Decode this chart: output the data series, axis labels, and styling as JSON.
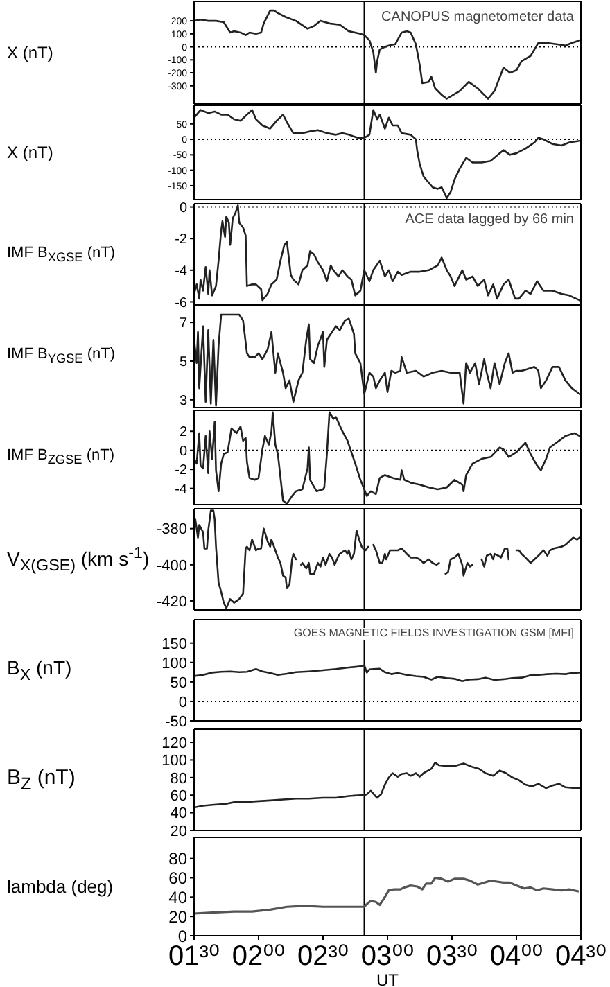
{
  "chart_data": [
    {
      "type": "line",
      "ylabel": "X (nT)",
      "xlim": [
        1.5,
        4.5
      ],
      "xticks": [
        {
          "value": 1.5,
          "label": null
        },
        {
          "value": 2,
          "label": null
        },
        {
          "value": 2.5,
          "label": null
        },
        {
          "value": 3,
          "label": null
        },
        {
          "value": 3.5,
          "label": null
        },
        {
          "value": 4,
          "label": null
        },
        {
          "value": 4.5,
          "label": null
        }
      ],
      "ylim": [
        -440,
        350
      ],
      "yticks": [
        -300,
        -200,
        -100,
        0,
        100,
        200
      ],
      "tick_labels": "y",
      "annotations": [
        "CANOPUS magnetometer data"
      ],
      "ref_lines": [
        {
          "axis": "x",
          "value": 2.82,
          "color": "#000000"
        },
        {
          "axis": "y",
          "value": 0,
          "color": "#000000",
          "line_style": "dotted"
        }
      ],
      "color": "#222222",
      "x": [
        1.5,
        1.55,
        1.61,
        1.67,
        1.73,
        1.78,
        1.81,
        1.86,
        1.9,
        1.93,
        1.98,
        2.02,
        2.04,
        2.09,
        2.12,
        2.15,
        2.21,
        2.29,
        2.38,
        2.43,
        2.48,
        2.55,
        2.63,
        2.7,
        2.79,
        2.82,
        2.86,
        2.89,
        2.91,
        2.92,
        2.94,
        2.98,
        3.01,
        3.06,
        3.11,
        3.15,
        3.18,
        3.22,
        3.25,
        3.27,
        3.32,
        3.34,
        3.37,
        3.42,
        3.46,
        3.51,
        3.56,
        3.63,
        3.7,
        3.75,
        3.78,
        3.83,
        3.9,
        3.95,
        4.0,
        4.04,
        4.11,
        4.17,
        4.24,
        4.31,
        4.38,
        4.43,
        4.49
      ],
      "values": [
        200,
        210,
        200,
        200,
        190,
        110,
        120,
        110,
        90,
        110,
        100,
        110,
        180,
        280,
        280,
        260,
        230,
        200,
        140,
        160,
        200,
        180,
        170,
        120,
        100,
        90,
        50,
        -40,
        -200,
        -110,
        -20,
        0,
        10,
        20,
        110,
        120,
        110,
        20,
        -140,
        -280,
        -270,
        -230,
        -320,
        -370,
        -400,
        -370,
        -340,
        -270,
        -320,
        -370,
        -400,
        -340,
        -160,
        -200,
        -180,
        -110,
        -70,
        30,
        30,
        20,
        10,
        30,
        50
      ]
    },
    {
      "type": "line",
      "ylabel": "X (nT)",
      "xlim": [
        1.5,
        4.5
      ],
      "xticks": [
        {
          "value": 1.5,
          "label": null
        },
        {
          "value": 2,
          "label": null
        },
        {
          "value": 2.5,
          "label": null
        },
        {
          "value": 3,
          "label": null
        },
        {
          "value": 3.5,
          "label": null
        },
        {
          "value": 4,
          "label": null
        },
        {
          "value": 4.5,
          "label": null
        }
      ],
      "ylim": [
        -195,
        110
      ],
      "yticks": [
        -150,
        -100,
        -50,
        0,
        50
      ],
      "tick_labels": "y",
      "ref_lines": [
        {
          "axis": "x",
          "value": 2.82,
          "color": "#000000"
        },
        {
          "axis": "y",
          "value": 0,
          "color": "#000000",
          "line_style": "dotted"
        }
      ],
      "color": "#222222",
      "x": [
        1.5,
        1.55,
        1.61,
        1.66,
        1.71,
        1.76,
        1.81,
        1.86,
        1.91,
        1.95,
        1.98,
        2.03,
        2.09,
        2.14,
        2.19,
        2.22,
        2.27,
        2.34,
        2.39,
        2.46,
        2.53,
        2.6,
        2.65,
        2.7,
        2.77,
        2.82,
        2.86,
        2.89,
        2.92,
        2.94,
        2.98,
        3.01,
        3.04,
        3.08,
        3.11,
        3.18,
        3.22,
        3.23,
        3.25,
        3.28,
        3.32,
        3.35,
        3.39,
        3.42,
        3.46,
        3.49,
        3.52,
        3.56,
        3.61,
        3.66,
        3.73,
        3.8,
        3.87,
        3.9,
        3.95,
        4.0,
        4.07,
        4.14,
        4.17,
        4.21,
        4.28,
        4.35,
        4.41,
        4.49
      ],
      "values": [
        70,
        95,
        85,
        90,
        80,
        80,
        65,
        60,
        80,
        95,
        65,
        45,
        35,
        60,
        80,
        55,
        20,
        20,
        25,
        30,
        20,
        15,
        20,
        15,
        5,
        5,
        15,
        95,
        65,
        80,
        35,
        70,
        45,
        45,
        20,
        15,
        0,
        -35,
        -80,
        -120,
        -140,
        -155,
        -160,
        -155,
        -190,
        -170,
        -130,
        -95,
        -60,
        -75,
        -75,
        -70,
        -45,
        -35,
        -50,
        -45,
        -30,
        -10,
        5,
        0,
        -15,
        -20,
        -10,
        -5
      ]
    },
    {
      "type": "line",
      "ylabel": "IMF B$_{XGSE}$ (nT)",
      "xlim": [
        1.5,
        4.5
      ],
      "xticks": [
        {
          "value": 1.5,
          "label": null
        },
        {
          "value": 2,
          "label": null
        },
        {
          "value": 2.5,
          "label": null
        },
        {
          "value": 3,
          "label": null
        },
        {
          "value": 3.5,
          "label": null
        },
        {
          "value": 4,
          "label": null
        },
        {
          "value": 4.5,
          "label": null
        }
      ],
      "ylim": [
        -6.2,
        0.2
      ],
      "yticks": [
        -6,
        -4,
        -2,
        0
      ],
      "tick_labels": "y",
      "annotations": [
        "ACE data lagged by 66 min"
      ],
      "ref_lines": [
        {
          "axis": "x",
          "value": 2.82,
          "color": "#000000"
        },
        {
          "axis": "y",
          "value": 0,
          "color": "#000000",
          "line_style": "dotted"
        }
      ],
      "color": "#222222",
      "x": [
        1.5,
        1.52,
        1.54,
        1.55,
        1.57,
        1.59,
        1.61,
        1.62,
        1.64,
        1.66,
        1.67,
        1.69,
        1.71,
        1.72,
        1.74,
        1.75,
        1.77,
        1.78,
        1.8,
        1.82,
        1.84,
        1.85,
        1.88,
        1.9,
        1.91,
        1.95,
        1.98,
        2.02,
        2.03,
        2.07,
        2.1,
        2.14,
        2.17,
        2.2,
        2.22,
        2.25,
        2.27,
        2.31,
        2.34,
        2.38,
        2.4,
        2.43,
        2.46,
        2.5,
        2.53,
        2.56,
        2.58,
        2.62,
        2.65,
        2.69,
        2.72,
        2.75,
        2.79,
        2.82,
        2.86,
        2.89,
        2.94,
        2.98,
        3.01,
        3.04,
        3.08,
        3.11,
        3.18,
        3.25,
        3.32,
        3.39,
        3.42,
        3.46,
        3.49,
        3.52,
        3.58,
        3.61,
        3.66,
        3.7,
        3.75,
        3.78,
        3.82,
        3.85,
        3.9,
        3.94,
        3.99,
        4.02,
        4.07,
        4.11,
        4.16,
        4.21,
        4.28,
        4.35,
        4.41,
        4.49
      ],
      "values": [
        -5.5,
        -4.9,
        -5.8,
        -4.6,
        -5.3,
        -3.8,
        -5.5,
        -4.0,
        -5.6,
        -5.2,
        -5.0,
        -3.4,
        -1.5,
        -0.9,
        -1.9,
        -0.6,
        -1.0,
        -2.4,
        -0.7,
        -0.4,
        0.1,
        -1.0,
        -1.3,
        -1.8,
        -5.0,
        -4.9,
        -4.9,
        -5.2,
        -5.9,
        -5.5,
        -4.9,
        -4.6,
        -3.4,
        -2.4,
        -2.2,
        -4.3,
        -4.6,
        -4.9,
        -4.0,
        -3.7,
        -2.8,
        -3.0,
        -3.5,
        -4.0,
        -4.7,
        -3.7,
        -4.0,
        -4.4,
        -4.0,
        -4.4,
        -4.6,
        -5.6,
        -5.3,
        -4.0,
        -4.7,
        -4.0,
        -3.4,
        -4.4,
        -4.0,
        -4.7,
        -4.1,
        -4.3,
        -4.1,
        -4.1,
        -4.0,
        -3.7,
        -3.2,
        -4.0,
        -4.4,
        -5.0,
        -4.0,
        -4.6,
        -4.4,
        -5.0,
        -4.6,
        -5.6,
        -4.9,
        -5.8,
        -4.9,
        -4.6,
        -5.8,
        -5.8,
        -5.3,
        -5.5,
        -4.7,
        -5.3,
        -5.3,
        -5.5,
        -5.6,
        -5.9
      ]
    },
    {
      "type": "line",
      "ylabel": "IMF B$_{YGSE}$ (nT)",
      "xlim": [
        1.5,
        4.5
      ],
      "xticks": [
        {
          "value": 1.5,
          "label": null
        },
        {
          "value": 2,
          "label": null
        },
        {
          "value": 2.5,
          "label": null
        },
        {
          "value": 3,
          "label": null
        },
        {
          "value": 3.5,
          "label": null
        },
        {
          "value": 4,
          "label": null
        },
        {
          "value": 4.5,
          "label": null
        }
      ],
      "ylim": [
        2.6,
        7.9
      ],
      "yticks": [
        3,
        5,
        7
      ],
      "tick_labels": "y",
      "ref_lines": [
        {
          "axis": "x",
          "value": 2.82,
          "color": "#000000"
        }
      ],
      "color": "#222222",
      "x": [
        1.5,
        1.52,
        1.53,
        1.54,
        1.57,
        1.59,
        1.61,
        1.63,
        1.65,
        1.67,
        1.69,
        1.71,
        1.74,
        1.79,
        1.85,
        1.88,
        1.91,
        1.93,
        1.97,
        2.0,
        2.03,
        2.07,
        2.1,
        2.13,
        2.15,
        2.19,
        2.21,
        2.24,
        2.27,
        2.31,
        2.34,
        2.37,
        2.39,
        2.4,
        2.43,
        2.46,
        2.5,
        2.51,
        2.53,
        2.57,
        2.6,
        2.63,
        2.67,
        2.7,
        2.74,
        2.75,
        2.79,
        2.82,
        2.86,
        2.89,
        2.91,
        2.94,
        2.98,
        3.0,
        3.03,
        3.06,
        3.1,
        3.11,
        3.15,
        3.22,
        3.28,
        3.35,
        3.42,
        3.49,
        3.56,
        3.59,
        3.61,
        3.64,
        3.68,
        3.71,
        3.75,
        3.77,
        3.8,
        3.83,
        3.87,
        3.91,
        3.94,
        3.97,
        4.0,
        4.04,
        4.09,
        4.14,
        4.17,
        4.19,
        4.23,
        4.28,
        4.33,
        4.38,
        4.43,
        4.49
      ],
      "values": [
        6.1,
        4.9,
        6.5,
        3.6,
        6.8,
        2.9,
        6.6,
        2.8,
        6.1,
        2.7,
        5.8,
        7.4,
        7.4,
        7.4,
        7.4,
        7.1,
        5.4,
        5.2,
        5.2,
        5.4,
        5.1,
        5.6,
        6.5,
        4.4,
        5.4,
        4.4,
        3.6,
        4.0,
        2.9,
        4.0,
        4.4,
        6.1,
        6.9,
        5.1,
        4.9,
        5.8,
        6.5,
        4.7,
        6.1,
        6.5,
        6.8,
        6.6,
        7.1,
        7.2,
        6.4,
        5.4,
        4.9,
        3.3,
        4.4,
        4.2,
        3.6,
        4.0,
        4.4,
        3.4,
        4.5,
        4.4,
        4.5,
        5.2,
        4.4,
        4.5,
        4.2,
        4.4,
        4.5,
        4.4,
        4.4,
        2.8,
        4.9,
        4.4,
        4.9,
        3.8,
        5.1,
        4.4,
        3.6,
        4.9,
        3.8,
        4.9,
        5.4,
        4.4,
        4.5,
        4.5,
        4.6,
        4.7,
        4.5,
        3.6,
        4.0,
        4.7,
        4.7,
        4.0,
        3.6,
        3.3
      ]
    },
    {
      "type": "line",
      "ylabel": "IMF B$_{ZGSE}$ (nT)",
      "xlim": [
        1.5,
        4.5
      ],
      "xticks": [
        {
          "value": 1.5,
          "label": null
        },
        {
          "value": 2,
          "label": null
        },
        {
          "value": 2.5,
          "label": null
        },
        {
          "value": 3,
          "label": null
        },
        {
          "value": 3.5,
          "label": null
        },
        {
          "value": 4,
          "label": null
        },
        {
          "value": 4.5,
          "label": null
        }
      ],
      "ylim": [
        -5.7,
        4.2
      ],
      "yticks": [
        -4,
        -2,
        0,
        2
      ],
      "tick_labels": "y",
      "ref_lines": [
        {
          "axis": "x",
          "value": 2.82,
          "color": "#000000"
        },
        {
          "axis": "y",
          "value": 0,
          "color": "#000000",
          "line_style": "dotted"
        }
      ],
      "color": "#222222",
      "x": [
        1.5,
        1.52,
        1.54,
        1.55,
        1.57,
        1.59,
        1.61,
        1.62,
        1.64,
        1.66,
        1.67,
        1.69,
        1.71,
        1.73,
        1.76,
        1.79,
        1.83,
        1.86,
        1.88,
        1.9,
        1.91,
        1.93,
        1.97,
        2.0,
        2.03,
        2.05,
        2.08,
        2.1,
        2.11,
        2.13,
        2.15,
        2.19,
        2.22,
        2.26,
        2.29,
        2.34,
        2.38,
        2.39,
        2.4,
        2.45,
        2.5,
        2.51,
        2.53,
        2.55,
        2.58,
        2.6,
        2.65,
        2.69,
        2.72,
        2.75,
        2.79,
        2.82,
        2.84,
        2.87,
        2.91,
        2.94,
        2.98,
        3.04,
        3.1,
        3.11,
        3.13,
        3.18,
        3.25,
        3.32,
        3.39,
        3.46,
        3.52,
        3.58,
        3.59,
        3.61,
        3.66,
        3.73,
        3.8,
        3.87,
        3.9,
        3.94,
        4.0,
        4.07,
        4.11,
        4.16,
        4.19,
        4.23,
        4.26,
        4.31,
        4.38,
        4.45,
        4.49
      ],
      "values": [
        -0.9,
        -1.4,
        1.8,
        -1.6,
        -1.9,
        1.5,
        -2.4,
        2.0,
        -0.9,
        3.0,
        -2.1,
        -4.3,
        -1.4,
        -0.4,
        -0.2,
        2.3,
        1.8,
        2.5,
        1.0,
        1.3,
        -1.2,
        -2.9,
        -3.1,
        -2.9,
        0.1,
        1.5,
        0.6,
        2.0,
        4.0,
        0.6,
        -0.4,
        -5.3,
        -5.6,
        -4.8,
        -4.3,
        -4.1,
        -1.9,
        0.3,
        -3.1,
        -4.3,
        -4.1,
        -3.9,
        -0.4,
        4.0,
        3.3,
        3.5,
        2.0,
        1.0,
        -0.2,
        -1.4,
        -3.1,
        -4.1,
        -4.8,
        -4.3,
        -4.6,
        -2.9,
        -2.6,
        -2.9,
        -3.1,
        -2.1,
        -3.1,
        -3.4,
        -3.6,
        -3.9,
        -4.1,
        -3.9,
        -3.1,
        -3.6,
        -4.3,
        -2.6,
        -1.4,
        -0.9,
        -0.7,
        0.3,
        0.1,
        -0.7,
        -0.2,
        0.8,
        -0.4,
        -1.6,
        -2.1,
        -0.9,
        0.3,
        0.8,
        1.5,
        1.8,
        1.5
      ]
    },
    {
      "type": "line",
      "ylabel": "V$_{X(GSE)}$ (km s$^{-1}$)",
      "xlim": [
        1.5,
        4.5
      ],
      "xticks": [
        {
          "value": 1.5,
          "label": null
        },
        {
          "value": 2,
          "label": null
        },
        {
          "value": 2.5,
          "label": null
        },
        {
          "value": 3,
          "label": null
        },
        {
          "value": 3.5,
          "label": null
        },
        {
          "value": 4,
          "label": null
        },
        {
          "value": 4.5,
          "label": null
        }
      ],
      "ylim": [
        -425,
        -369
      ],
      "yticks": [
        -420,
        -400,
        -380
      ],
      "tick_labels": "y",
      "ref_lines": [
        {
          "axis": "x",
          "value": 2.82,
          "color": "#000000"
        }
      ],
      "color": "#222222",
      "x": [
        1.5,
        1.51,
        1.53,
        1.54,
        1.57,
        1.58,
        1.6,
        1.61,
        1.63,
        1.65,
        1.66,
        1.67,
        1.69,
        1.71,
        1.73,
        1.75,
        1.78,
        1.81,
        1.85,
        1.88,
        1.9,
        1.91,
        1.93,
        1.95,
        1.98,
        2.0,
        2.02,
        2.04,
        2.07,
        2.09,
        2.1,
        2.13,
        2.15,
        2.17,
        2.19,
        2.21,
        2.22,
        2.24,
        2.26,
        2.27,
        2.29,
        2.31,
        2.33,
        2.34,
        2.37,
        2.39,
        2.4,
        2.43,
        2.46,
        2.48,
        2.5,
        2.52,
        2.55,
        2.57,
        2.59,
        2.62,
        2.63,
        2.67,
        2.69,
        2.7,
        2.72,
        2.74,
        2.76,
        2.78,
        2.8,
        2.81,
        2.83,
        2.85,
        2.87,
        2.89,
        2.91,
        2.94,
        2.96,
        2.98,
        2.99,
        3.02,
        3.04,
        3.08,
        3.11,
        3.15,
        3.18,
        3.22,
        3.25,
        3.28,
        3.32,
        3.35,
        3.38,
        3.4,
        3.42,
        3.45,
        3.47,
        3.49,
        3.52,
        3.55,
        3.58,
        3.59,
        3.62,
        3.64,
        3.66,
        3.7,
        3.73,
        3.75,
        3.77,
        3.8,
        3.82,
        3.83,
        3.86,
        3.88,
        3.91,
        3.93,
        3.94,
        3.97,
        4.0,
        4.02,
        4.04,
        4.07,
        4.11,
        4.14,
        4.17,
        4.21,
        4.24,
        4.26,
        4.29,
        4.35,
        4.38,
        4.41,
        4.44,
        4.47,
        4.49
      ],
      "values": [
        -382,
        -375,
        -385,
        -378,
        -382,
        -391,
        -391,
        -381,
        -370,
        -370,
        -375,
        -390,
        -410,
        -415,
        -421,
        -424,
        -419,
        -421,
        -419,
        -416,
        -391,
        -390,
        -392,
        -386,
        -392,
        -391,
        -391,
        -380,
        -387,
        -390,
        -386,
        -392,
        -396,
        -399,
        -406,
        -407,
        -413,
        -411,
        -397,
        -394,
        -397,
        null,
        -400,
        -399,
        -402,
        -399,
        -405,
        -405,
        -399,
        -401,
        -396,
        -400,
        -394,
        -396,
        -400,
        -395,
        -394,
        -392,
        -394,
        -392,
        -397,
        -394,
        -381,
        -386,
        -390,
        -391,
        -392,
        -390,
        null,
        -389,
        -392,
        -399,
        -399,
        -394,
        -397,
        -392,
        -392,
        -392,
        -391,
        -394,
        -396,
        -396,
        -397,
        -399,
        -397,
        -399,
        -400,
        -399,
        null,
        -405,
        -404,
        -397,
        -396,
        -394,
        -400,
        -406,
        -399,
        -401,
        -400,
        null,
        -397,
        -401,
        -395,
        -394,
        -397,
        -394,
        -395,
        -396,
        -391,
        -391,
        -397,
        null,
        -392,
        -392,
        -394,
        -396,
        -399,
        -397,
        -395,
        -392,
        -395,
        -392,
        -391,
        -390,
        -389,
        -387,
        -385,
        -386,
        -385
      ]
    },
    {
      "type": "line",
      "ylabel": "B$_{X}$ (nT)",
      "xlim": [
        1.5,
        4.5
      ],
      "xticks": [
        {
          "value": 1.5,
          "label": null
        },
        {
          "value": 2,
          "label": null
        },
        {
          "value": 2.5,
          "label": null
        },
        {
          "value": 3,
          "label": null
        },
        {
          "value": 3.5,
          "label": null
        },
        {
          "value": 4,
          "label": null
        },
        {
          "value": 4.5,
          "label": null
        }
      ],
      "ylim": [
        -50,
        210
      ],
      "yticks": [
        -50,
        0,
        50,
        100,
        150
      ],
      "tick_labels": "y",
      "annotations": [
        "GOES MAGNETIC FIELDS INVESTIGATION GSM [MFI]"
      ],
      "ref_lines": [
        {
          "axis": "x",
          "value": 2.82,
          "color": "#000000"
        },
        {
          "axis": "y",
          "value": 0,
          "color": "#000000",
          "line_style": "dotted"
        }
      ],
      "color": "#222222",
      "x": [
        1.5,
        1.57,
        1.64,
        1.71,
        1.78,
        1.85,
        1.91,
        1.98,
        2.03,
        2.09,
        2.15,
        2.22,
        2.29,
        2.39,
        2.5,
        2.6,
        2.7,
        2.79,
        2.82,
        2.84,
        2.86,
        2.89,
        2.94,
        2.98,
        3.03,
        3.08,
        3.15,
        3.22,
        3.28,
        3.34,
        3.39,
        3.46,
        3.52,
        3.58,
        3.63,
        3.7,
        3.76,
        3.83,
        3.9,
        3.97,
        4.04,
        4.11,
        4.17,
        4.24,
        4.31,
        4.38,
        4.43,
        4.49
      ],
      "values": [
        65,
        68,
        74,
        76,
        77,
        75,
        76,
        83,
        77,
        73,
        68,
        71,
        75,
        77,
        80,
        83,
        87,
        90,
        93,
        74,
        82,
        83,
        84,
        75,
        70,
        73,
        68,
        65,
        63,
        56,
        63,
        60,
        58,
        52,
        56,
        57,
        61,
        55,
        57,
        60,
        61,
        67,
        68,
        70,
        71,
        70,
        73,
        74
      ]
    },
    {
      "type": "line",
      "ylabel": "B$_{Z}$ (nT)",
      "xlim": [
        1.5,
        4.5
      ],
      "xticks": [
        {
          "value": 1.5,
          "label": null
        },
        {
          "value": 2,
          "label": null
        },
        {
          "value": 2.5,
          "label": null
        },
        {
          "value": 3,
          "label": null
        },
        {
          "value": 3.5,
          "label": null
        },
        {
          "value": 4,
          "label": null
        },
        {
          "value": 4.5,
          "label": null
        }
      ],
      "ylim": [
        20,
        135
      ],
      "yticks": [
        20,
        40,
        60,
        80,
        100,
        120
      ],
      "tick_labels": "y",
      "ref_lines": [
        {
          "axis": "x",
          "value": 2.82,
          "color": "#000000"
        }
      ],
      "color": "#222222",
      "x": [
        1.5,
        1.57,
        1.64,
        1.74,
        1.81,
        1.88,
        1.98,
        2.09,
        2.19,
        2.29,
        2.39,
        2.5,
        2.6,
        2.7,
        2.79,
        2.82,
        2.84,
        2.87,
        2.9,
        2.92,
        2.95,
        2.98,
        3.01,
        3.04,
        3.08,
        3.11,
        3.15,
        3.18,
        3.22,
        3.25,
        3.28,
        3.34,
        3.37,
        3.4,
        3.46,
        3.52,
        3.59,
        3.66,
        3.71,
        3.76,
        3.82,
        3.87,
        3.92,
        3.97,
        4.02,
        4.07,
        4.12,
        4.17,
        4.23,
        4.28,
        4.33,
        4.38,
        4.45,
        4.49
      ],
      "values": [
        46,
        48,
        49,
        50,
        52,
        52,
        53,
        54,
        55,
        56,
        56,
        57,
        57,
        59,
        60,
        60,
        61,
        65,
        60,
        57,
        61,
        72,
        80,
        85,
        81,
        84,
        85,
        82,
        85,
        81,
        85,
        90,
        97,
        94,
        93,
        93,
        96,
        92,
        90,
        85,
        82,
        88,
        85,
        80,
        77,
        72,
        70,
        73,
        68,
        71,
        73,
        69,
        68,
        68
      ]
    },
    {
      "type": "line",
      "ylabel": "lambda (deg)",
      "xlabel": "UT",
      "xlim": [
        1.5,
        4.5
      ],
      "xticks": [
        {
          "value": 1.5,
          "label": "01³⁰"
        },
        {
          "value": 2,
          "label": "02⁰⁰"
        },
        {
          "value": 2.5,
          "label": "02³⁰"
        },
        {
          "value": 3,
          "label": "03⁰⁰"
        },
        {
          "value": 3.5,
          "label": "03³⁰"
        },
        {
          "value": 4,
          "label": "04⁰⁰"
        },
        {
          "value": 4.5,
          "label": "04³⁰"
        }
      ],
      "ylim": [
        0,
        102
      ],
      "yticks": [
        0,
        20,
        40,
        60,
        80
      ],
      "ref_lines": [
        {
          "axis": "x",
          "value": 2.82,
          "color": "#000000"
        }
      ],
      "color": "#555555",
      "x": [
        1.5,
        1.64,
        1.81,
        1.95,
        2.09,
        2.22,
        2.36,
        2.5,
        2.63,
        2.77,
        2.82,
        2.85,
        2.87,
        2.91,
        2.94,
        2.97,
        3.01,
        3.05,
        3.1,
        3.13,
        3.18,
        3.23,
        3.27,
        3.3,
        3.34,
        3.37,
        3.42,
        3.47,
        3.52,
        3.59,
        3.64,
        3.7,
        3.75,
        3.8,
        3.85,
        3.9,
        3.95,
        4.0,
        4.06,
        4.11,
        4.16,
        4.21,
        4.28,
        4.35,
        4.41,
        4.48
      ],
      "values": [
        23,
        24,
        25,
        25,
        27,
        30,
        31,
        30,
        30,
        30,
        30,
        34,
        36,
        35,
        32,
        38,
        47,
        48,
        48,
        50,
        52,
        51,
        48,
        54,
        54,
        60,
        59,
        56,
        59,
        59,
        57,
        53,
        55,
        57,
        56,
        55,
        55,
        52,
        49,
        50,
        47,
        49,
        48,
        47,
        48,
        46
      ]
    }
  ]
}
